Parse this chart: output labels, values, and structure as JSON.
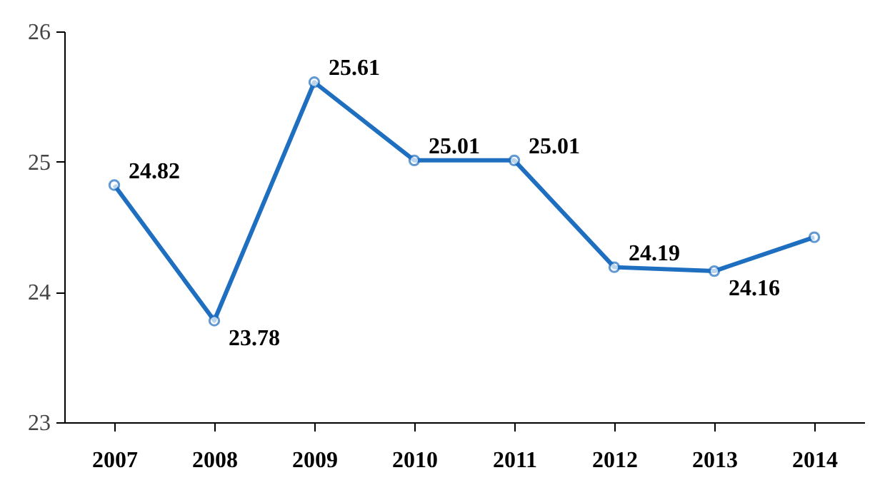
{
  "chart_data": {
    "type": "line",
    "categories": [
      "2007",
      "2008",
      "2009",
      "2010",
      "2011",
      "2012",
      "2013",
      "2014"
    ],
    "series": [
      {
        "color": "#1f6fc1",
        "values": [
          24.82,
          23.78,
          25.61,
          25.01,
          25.01,
          24.19,
          24.16,
          24.42
        ],
        "value_labels": [
          "24.82",
          "23.78",
          "25.61",
          "25.01",
          "25.01",
          "24.19",
          "24.16",
          null
        ]
      }
    ],
    "ylim": [
      23,
      26
    ],
    "yticks": [
      23,
      24,
      25,
      26
    ],
    "marker": "circle",
    "grid": false
  }
}
